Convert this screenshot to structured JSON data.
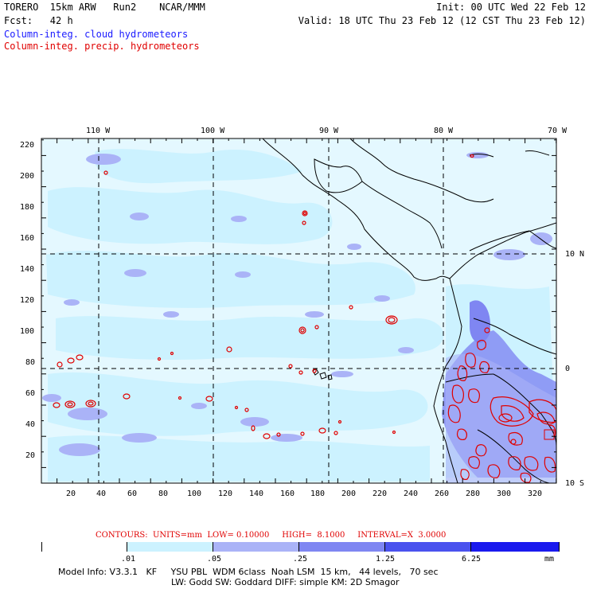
{
  "header": {
    "line1_left": "TORERO  15km ARW   Run2    NCAR/MMM",
    "line1_right": "Init: 00 UTC Wed 22 Feb 12",
    "line2_left": "Fcst:   42 h",
    "line2_right": "Valid: 18 UTC Thu 23 Feb 12 (12 CST Thu 23 Feb 12)",
    "field1": "Column-integ. cloud hydrometeors",
    "field2": "Column-integ. precip. hydrometeors"
  },
  "map": {
    "lon_labels_top": [
      "110 W",
      "100 W",
      "90 W",
      "80 W",
      "70 W"
    ],
    "lat_labels_right": [
      "10 N",
      "0",
      "10 S"
    ],
    "y_ticks": [
      "220",
      "200",
      "180",
      "160",
      "140",
      "120",
      "100",
      "80",
      "60",
      "40",
      "20"
    ],
    "x_ticks": [
      "20",
      "40",
      "60",
      "80",
      "100",
      "120",
      "140",
      "160",
      "180",
      "200",
      "220",
      "240",
      "260",
      "280",
      "300",
      "320"
    ],
    "colors": {
      "water": "#ffffff",
      "cloud_light": "#ccf2ff",
      "cloud_mid": "#aab3f7",
      "cloud_dark": "#7f86f2",
      "precip_contour": "#e00000",
      "coast": "#000000"
    }
  },
  "contours_info": "CONTOURS:  UNITS=mm  LOW= 0.10000     HIGH=  8.1000     INTERVAL=X  3.0000",
  "legend": {
    "labels": [
      ".01",
      ".05",
      ".25",
      "1.25",
      "6.25",
      "mm"
    ],
    "colors": [
      "#ffffff",
      "#ccf2ff",
      "#aab3f7",
      "#7f86f2",
      "#4a52ee",
      "#1a1aee"
    ]
  },
  "footer": {
    "line1": "Model Info: V3.3.1   KF     YSU PBL  WDM 6class  Noah LSM  15 km,   44 levels,   70 sec",
    "line2": "LW: Godd SW: Goddard DIFF: simple KM: 2D Smagor"
  }
}
